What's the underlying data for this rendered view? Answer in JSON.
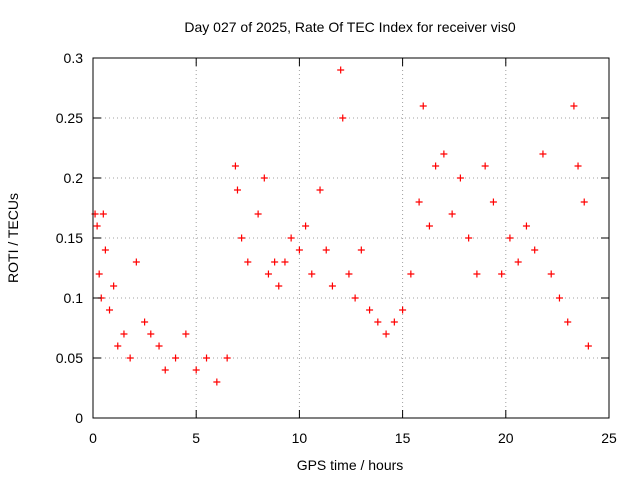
{
  "chart_data": {
    "type": "scatter",
    "title": "Day 027 of 2025, Rate Of TEC Index for receiver vis0",
    "xlabel": "GPS time / hours",
    "ylabel": "ROTI / TECUs",
    "xlim": [
      0,
      25
    ],
    "ylim": [
      0,
      0.3
    ],
    "x_ticks": [
      "0",
      "5",
      "10",
      "15",
      "20",
      "25"
    ],
    "y_ticks": [
      "0",
      "0.05",
      "0.1",
      "0.15",
      "0.2",
      "0.25",
      "0.3"
    ],
    "grid": true,
    "marker": "+",
    "point_color": "#ff0000",
    "series": [
      {
        "x": [
          0.1,
          0.2,
          0.3,
          0.4,
          0.5,
          0.6,
          0.8,
          1.0,
          1.2,
          1.5,
          1.8,
          2.1,
          2.5,
          2.8,
          3.2,
          3.5,
          4.0,
          4.5,
          5.0,
          5.5,
          6.0,
          6.5,
          6.9,
          7.0,
          7.2,
          7.5,
          8.0,
          8.3,
          8.5,
          8.8,
          9.0,
          9.3,
          9.6,
          10.0,
          10.3,
          10.6,
          11.0,
          11.3,
          11.6,
          12.0,
          12.1,
          12.4,
          12.7,
          13.0,
          13.4,
          13.8,
          14.2,
          14.6,
          15.0,
          15.4,
          15.8,
          16.0,
          16.3,
          16.6,
          17.0,
          17.4,
          17.8,
          18.2,
          18.6,
          19.0,
          19.4,
          19.8,
          20.2,
          20.6,
          21.0,
          21.4,
          21.8,
          22.2,
          22.6,
          23.0,
          23.3,
          23.5,
          23.8,
          24.0
        ],
        "y": [
          0.17,
          0.16,
          0.12,
          0.1,
          0.17,
          0.14,
          0.09,
          0.11,
          0.06,
          0.07,
          0.05,
          0.13,
          0.08,
          0.07,
          0.06,
          0.04,
          0.05,
          0.07,
          0.04,
          0.05,
          0.03,
          0.05,
          0.21,
          0.19,
          0.15,
          0.13,
          0.17,
          0.2,
          0.12,
          0.13,
          0.11,
          0.13,
          0.15,
          0.14,
          0.16,
          0.12,
          0.19,
          0.14,
          0.11,
          0.29,
          0.25,
          0.12,
          0.1,
          0.14,
          0.09,
          0.08,
          0.07,
          0.08,
          0.09,
          0.12,
          0.18,
          0.26,
          0.16,
          0.21,
          0.22,
          0.17,
          0.2,
          0.15,
          0.12,
          0.21,
          0.18,
          0.12,
          0.15,
          0.13,
          0.16,
          0.14,
          0.22,
          0.12,
          0.1,
          0.08,
          0.26,
          0.21,
          0.18,
          0.06
        ]
      }
    ]
  }
}
